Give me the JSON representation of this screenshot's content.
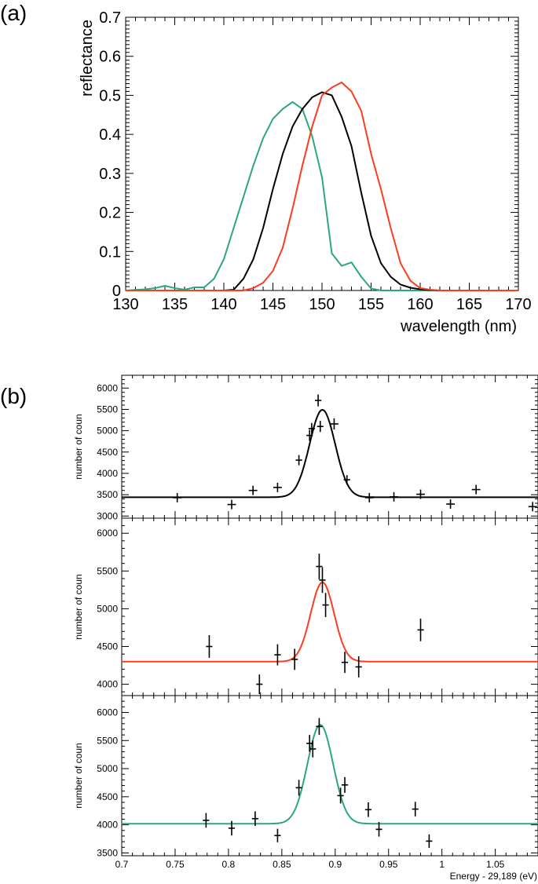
{
  "figure": {
    "label_a": "(a)",
    "label_b": "(b)"
  },
  "colors": {
    "black": "#000000",
    "red": "#ff3b1f",
    "green": "#2ca877"
  },
  "chart_data": [
    {
      "id": "a",
      "type": "line",
      "title": "",
      "xlabel": "wavelength (nm)",
      "ylabel": "reflectance",
      "xlim": [
        130,
        170
      ],
      "ylim": [
        0,
        0.7
      ],
      "xticks": [
        130,
        135,
        140,
        145,
        150,
        155,
        160,
        165,
        170
      ],
      "yticks": [
        0,
        0.1,
        0.2,
        0.3,
        0.4,
        0.5,
        0.6,
        0.7
      ],
      "ytick_labels": [
        "0",
        "0.1",
        "0.2",
        "0.3",
        "0.4",
        "0.5",
        "0.6",
        "0.7"
      ],
      "series": [
        {
          "name": "green",
          "color": "#2ca877",
          "x": [
            130,
            132,
            133,
            134,
            135,
            136,
            137,
            138,
            139,
            140,
            141,
            142,
            143,
            144,
            145,
            146,
            147,
            148,
            149,
            150,
            151,
            152,
            153,
            154,
            155,
            156,
            157,
            158,
            159,
            160,
            170
          ],
          "y": [
            0,
            0.003,
            0.006,
            0.012,
            0.006,
            0.002,
            0.008,
            0.008,
            0.03,
            0.08,
            0.16,
            0.24,
            0.32,
            0.39,
            0.44,
            0.465,
            0.483,
            0.465,
            0.395,
            0.29,
            0.095,
            0.063,
            0.072,
            0.035,
            0.005,
            0,
            0,
            0,
            0,
            0,
            0
          ]
        },
        {
          "name": "black",
          "color": "#000000",
          "x": [
            130,
            140,
            141,
            142,
            143,
            144,
            145,
            146,
            147,
            148,
            149,
            150,
            151,
            152,
            153,
            154,
            155,
            156,
            157,
            158,
            159,
            160,
            161,
            162,
            170
          ],
          "y": [
            0,
            0,
            0.002,
            0.03,
            0.08,
            0.16,
            0.26,
            0.35,
            0.42,
            0.465,
            0.495,
            0.508,
            0.5,
            0.445,
            0.37,
            0.25,
            0.14,
            0.07,
            0.035,
            0.015,
            0.007,
            0.003,
            0.001,
            0,
            0
          ]
        },
        {
          "name": "red",
          "color": "#ff3b1f",
          "x": [
            130,
            142,
            143,
            144,
            145,
            146,
            147,
            148,
            149,
            150,
            151,
            152,
            153,
            154,
            155,
            156,
            157,
            158,
            159,
            160,
            161,
            162,
            170
          ],
          "y": [
            0,
            0,
            0.006,
            0.02,
            0.05,
            0.11,
            0.21,
            0.32,
            0.42,
            0.5,
            0.52,
            0.533,
            0.51,
            0.46,
            0.35,
            0.26,
            0.16,
            0.07,
            0.025,
            0.006,
            0.002,
            0,
            0
          ]
        }
      ]
    },
    {
      "id": "b1",
      "type": "scatter",
      "ylabel": "number of coun",
      "xlabel": "",
      "xlim": [
        0.7,
        1.09
      ],
      "ylim": [
        2950,
        6300
      ],
      "yticks": [
        3000,
        3500,
        4000,
        4500,
        5000,
        5500,
        6000
      ],
      "fit": {
        "color": "#000000",
        "baseline": 3440,
        "amplitude": 2050,
        "center": 0.888,
        "sigma": 0.012
      },
      "points": [
        {
          "x": 0.752,
          "y": 3430,
          "ey": 110,
          "ex": 0.004
        },
        {
          "x": 0.803,
          "y": 3270,
          "ey": 110,
          "ex": 0.004
        },
        {
          "x": 0.823,
          "y": 3600,
          "ey": 110,
          "ex": 0.004
        },
        {
          "x": 0.846,
          "y": 3670,
          "ey": 110,
          "ex": 0.004
        },
        {
          "x": 0.866,
          "y": 4310,
          "ey": 120,
          "ex": 0.003
        },
        {
          "x": 0.876,
          "y": 4890,
          "ey": 130,
          "ex": 0.003
        },
        {
          "x": 0.878,
          "y": 5050,
          "ey": 130,
          "ex": 0.003
        },
        {
          "x": 0.884,
          "y": 5710,
          "ey": 140,
          "ex": 0.003
        },
        {
          "x": 0.886,
          "y": 5100,
          "ey": 130,
          "ex": 0.003
        },
        {
          "x": 0.899,
          "y": 5160,
          "ey": 130,
          "ex": 0.004
        },
        {
          "x": 0.911,
          "y": 3850,
          "ey": 110,
          "ex": 0.003
        },
        {
          "x": 0.932,
          "y": 3430,
          "ey": 110,
          "ex": 0.004
        },
        {
          "x": 0.955,
          "y": 3450,
          "ey": 110,
          "ex": 0.004
        },
        {
          "x": 0.98,
          "y": 3510,
          "ey": 110,
          "ex": 0.004
        },
        {
          "x": 1.008,
          "y": 3280,
          "ey": 110,
          "ex": 0.004
        },
        {
          "x": 1.032,
          "y": 3620,
          "ey": 110,
          "ex": 0.004
        },
        {
          "x": 1.085,
          "y": 3220,
          "ey": 110,
          "ex": 0.004
        }
      ]
    },
    {
      "id": "b2",
      "type": "scatter",
      "ylabel": "number of coun",
      "xlabel": "",
      "xlim": [
        0.7,
        1.09
      ],
      "ylim": [
        3850,
        6200
      ],
      "yticks": [
        4000,
        4500,
        5000,
        5500,
        6000
      ],
      "fit": {
        "color": "#ff3b1f",
        "baseline": 4300,
        "amplitude": 1050,
        "center": 0.888,
        "sigma": 0.011
      },
      "points": [
        {
          "x": 0.782,
          "y": 4500,
          "ey": 150,
          "ex": 0.003
        },
        {
          "x": 0.829,
          "y": 4000,
          "ey": 130,
          "ex": 0.003
        },
        {
          "x": 0.846,
          "y": 4390,
          "ey": 140,
          "ex": 0.003
        },
        {
          "x": 0.862,
          "y": 4330,
          "ey": 140,
          "ex": 0.003
        },
        {
          "x": 0.885,
          "y": 5560,
          "ey": 170,
          "ex": 0.003
        },
        {
          "x": 0.888,
          "y": 5380,
          "ey": 170,
          "ex": 0.003
        },
        {
          "x": 0.891,
          "y": 5050,
          "ey": 160,
          "ex": 0.003
        },
        {
          "x": 0.909,
          "y": 4290,
          "ey": 140,
          "ex": 0.003
        },
        {
          "x": 0.922,
          "y": 4230,
          "ey": 140,
          "ex": 0.003
        },
        {
          "x": 0.98,
          "y": 4720,
          "ey": 150,
          "ex": 0.003
        }
      ]
    },
    {
      "id": "b3",
      "type": "scatter",
      "ylabel": "number of coun",
      "xlabel": "Energy - 29,189 (eV)",
      "xlim": [
        0.7,
        1.09
      ],
      "ylim": [
        3450,
        6300
      ],
      "yticks": [
        3500,
        4000,
        4500,
        5000,
        5500,
        6000
      ],
      "xticks": [
        0.7,
        0.75,
        0.8,
        0.85,
        0.9,
        0.95,
        1,
        1.05
      ],
      "xtick_labels": [
        "0.7",
        "0.75",
        "0.8",
        "0.85",
        "0.9",
        "0.95",
        "1",
        "1.05"
      ],
      "fit": {
        "color": "#2ca877",
        "baseline": 4020,
        "amplitude": 1760,
        "center": 0.886,
        "sigma": 0.012
      },
      "points": [
        {
          "x": 0.779,
          "y": 4080,
          "ey": 130,
          "ex": 0.003
        },
        {
          "x": 0.803,
          "y": 3940,
          "ey": 130,
          "ex": 0.003
        },
        {
          "x": 0.825,
          "y": 4110,
          "ey": 130,
          "ex": 0.003
        },
        {
          "x": 0.846,
          "y": 3810,
          "ey": 120,
          "ex": 0.003
        },
        {
          "x": 0.866,
          "y": 4660,
          "ey": 140,
          "ex": 0.003
        },
        {
          "x": 0.876,
          "y": 5450,
          "ey": 150,
          "ex": 0.003
        },
        {
          "x": 0.879,
          "y": 5350,
          "ey": 150,
          "ex": 0.003
        },
        {
          "x": 0.885,
          "y": 5750,
          "ey": 150,
          "ex": 0.003
        },
        {
          "x": 0.905,
          "y": 4520,
          "ey": 140,
          "ex": 0.003
        },
        {
          "x": 0.909,
          "y": 4710,
          "ey": 140,
          "ex": 0.003
        },
        {
          "x": 0.931,
          "y": 4270,
          "ey": 130,
          "ex": 0.003
        },
        {
          "x": 0.941,
          "y": 3920,
          "ey": 130,
          "ex": 0.003
        },
        {
          "x": 0.975,
          "y": 4280,
          "ey": 130,
          "ex": 0.003
        },
        {
          "x": 0.988,
          "y": 3710,
          "ey": 120,
          "ex": 0.003
        }
      ]
    }
  ]
}
